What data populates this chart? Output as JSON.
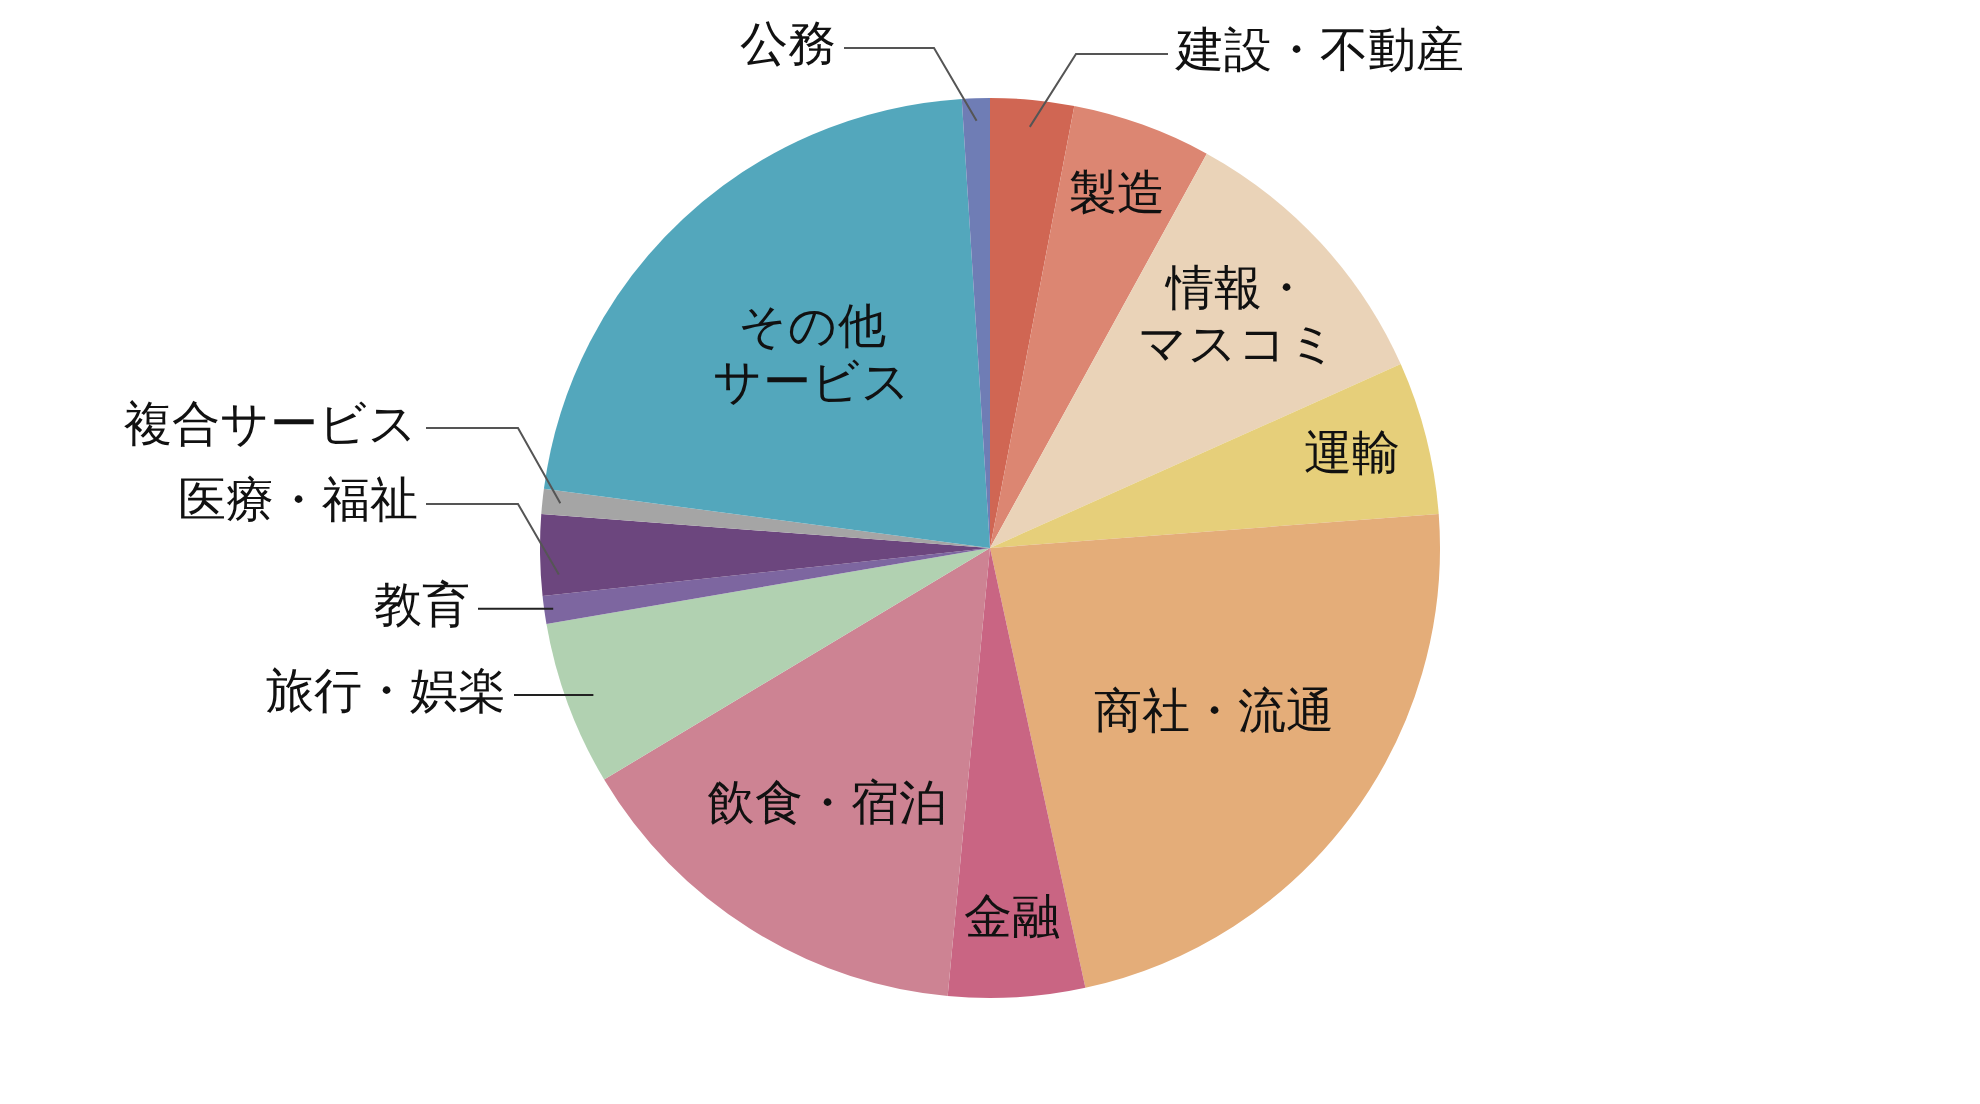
{
  "chart_data": {
    "type": "pie",
    "categories": [
      "建設・不動産",
      "製造",
      "情報・マスコミ",
      "運輸",
      "商社・流通",
      "金融",
      "飲食・宿泊",
      "旅行・娯楽",
      "教育",
      "医療・福祉",
      "複合サービス",
      "その他サービス",
      "公務"
    ],
    "values": [
      3,
      5,
      10.3,
      5.5,
      22.8,
      4.9,
      14.9,
      5.9,
      1,
      2.9,
      0.9,
      21.9,
      1
    ],
    "colors": [
      "#d06653",
      "#dc8672",
      "#ead3b8",
      "#e6cf7a",
      "#e4ad79",
      "#c96583",
      "#cd8393",
      "#b1d1b1",
      "#7d66a0",
      "#6c467e",
      "#a5a5a5",
      "#53a7bc",
      "#6f7db5"
    ]
  }
}
